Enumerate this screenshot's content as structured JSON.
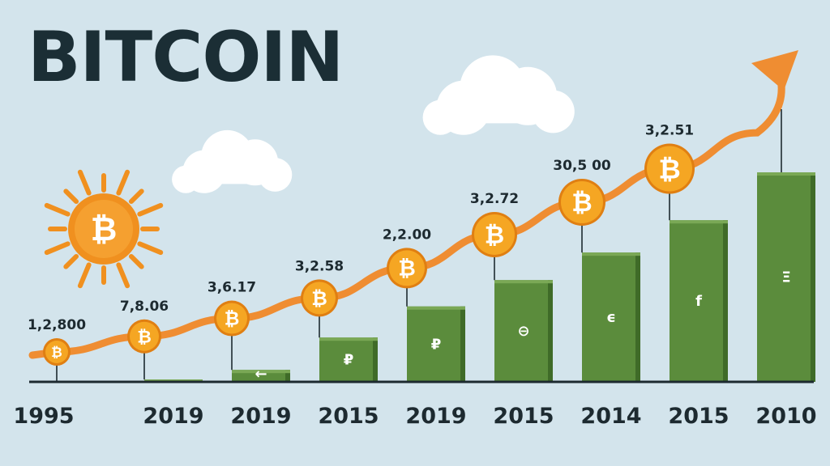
{
  "title": "BITCOIN",
  "colors": {
    "background": "#d3e4ec",
    "bar": "#5b8c3c",
    "bar_dark": "#3f6b28",
    "trend_arrow": "#ef8d32",
    "coin": "#f5a623",
    "coin_rim": "#e07f12",
    "sun": "#f0901f",
    "baseline": "#1d2a30"
  },
  "icons": [
    "bitcoin-coin-icon",
    "sun-icon",
    "cloud-icon",
    "trend-arrow-icon"
  ],
  "chart_data": {
    "type": "bar",
    "title": "BITCOIN",
    "xlabel": "",
    "ylabel": "",
    "grid": false,
    "categories": [
      "1995",
      "2019",
      "2019",
      "2015",
      "2019",
      "2015",
      "2014",
      "2015",
      "2010"
    ],
    "value_labels": [
      "1,2,800",
      "7,8.06",
      "3,6.17",
      "3,2.58",
      "2,2.00",
      "3,2.72",
      "30,5 00",
      "3,2.51",
      ""
    ],
    "bar_glyphs": [
      "",
      "",
      "←",
      "₽",
      "₽",
      "⊖",
      "ϵ",
      "f",
      "Ξ"
    ],
    "series": [
      {
        "type": "bar",
        "values": [
          0,
          2,
          10,
          37,
          63,
          85,
          108,
          135,
          175
        ]
      },
      {
        "type": "line",
        "values": [
          25,
          38,
          53,
          70,
          95,
          123,
          150,
          178,
          208
        ]
      }
    ]
  }
}
